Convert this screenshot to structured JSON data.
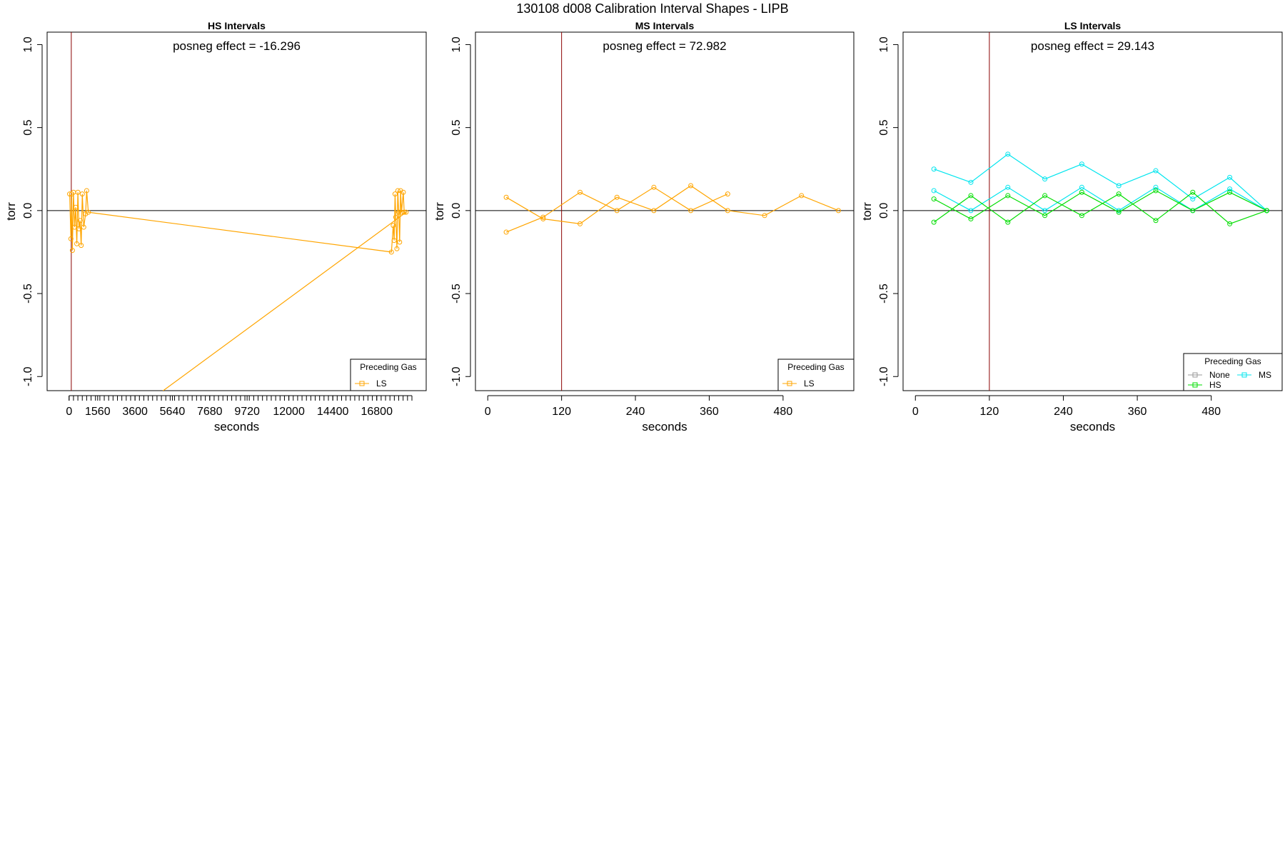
{
  "figure": {
    "title": "130108   d008   Calibration Interval Shapes - LIPB"
  },
  "colors": {
    "LS": "#ffa500",
    "MS": "#00e5ee",
    "HS": "#00dd00",
    "None": "#999999",
    "vline": "#8b0000",
    "hline": "#000000"
  },
  "chart_data": [
    {
      "type": "line",
      "title": "HS Intervals",
      "xlabel": "seconds",
      "ylabel": "torr",
      "ylim": [
        -1.0,
        1.0
      ],
      "xlim": [
        -1200,
        19500
      ],
      "x_ticks": [
        0,
        1560,
        3600,
        5640,
        7680,
        9720,
        12000,
        14400,
        16800
      ],
      "x_minor_step": 240,
      "x_minor_range": [
        0,
        18720
      ],
      "y_ticks": [
        "1.0",
        "0.5",
        "0.0",
        "-0.5",
        "-1.0"
      ],
      "y_tick_values": [
        1.0,
        0.5,
        0.0,
        -0.5,
        -1.0
      ],
      "vline_x": 120,
      "hline_y": 0,
      "annotation": "posneg effect = -16.296",
      "legend": {
        "title": "Preceding Gas",
        "position": "bottom-right",
        "entries": [
          "LS"
        ]
      },
      "series": [
        {
          "name": "LS",
          "color_key": "LS",
          "points": [
            [
              30,
              0.1
            ],
            [
              100,
              -0.17
            ],
            [
              140,
              0.1
            ],
            [
              180,
              -0.24
            ],
            [
              240,
              0.11
            ],
            [
              300,
              -0.1
            ],
            [
              360,
              0.02
            ],
            [
              420,
              -0.2
            ],
            [
              480,
              0.11
            ],
            [
              540,
              -0.11
            ],
            [
              600,
              -0.06
            ],
            [
              660,
              -0.21
            ],
            [
              720,
              0.1
            ],
            [
              800,
              -0.1
            ],
            [
              900,
              -0.02
            ],
            [
              960,
              0.12
            ],
            [
              1050,
              -0.01
            ],
            [
              17600,
              -0.25
            ],
            [
              17700,
              -0.09
            ],
            [
              17750,
              -0.18
            ],
            [
              17800,
              0.1
            ],
            [
              17840,
              -0.04
            ],
            [
              17900,
              -0.23
            ],
            [
              17950,
              0.12
            ],
            [
              18000,
              -0.01
            ],
            [
              18050,
              -0.19
            ],
            [
              18100,
              0.12
            ],
            [
              18150,
              -0.01
            ],
            [
              18250,
              0.11
            ],
            [
              18300,
              -0.01
            ],
            [
              18400,
              -0.01
            ],
            [
              4950,
              -1.1
            ]
          ]
        }
      ]
    },
    {
      "type": "line",
      "title": "MS Intervals",
      "xlabel": "seconds",
      "ylabel": "torr",
      "ylim": [
        -1.0,
        1.0
      ],
      "xlim": [
        -20,
        595
      ],
      "x_ticks": [
        0,
        120,
        240,
        360,
        480
      ],
      "y_ticks": [
        "1.0",
        "0.5",
        "0.0",
        "-0.5",
        "-1.0"
      ],
      "y_tick_values": [
        1.0,
        0.5,
        0.0,
        -0.5,
        -1.0
      ],
      "vline_x": 120,
      "hline_y": 0,
      "annotation": "posneg effect = 72.982",
      "legend": {
        "title": "Preceding Gas",
        "position": "bottom-right",
        "entries": [
          "LS"
        ]
      },
      "series": [
        {
          "name": "LS",
          "color_key": "LS",
          "points": [
            [
              30,
              0.08
            ],
            [
              90,
              -0.05
            ],
            [
              150,
              -0.08
            ],
            [
              210,
              0.08
            ],
            [
              270,
              0.0
            ],
            [
              330,
              0.15
            ],
            [
              390,
              0.0
            ],
            [
              450,
              -0.03
            ],
            [
              510,
              0.09
            ],
            [
              570,
              0.0
            ]
          ]
        },
        {
          "name": "LS",
          "color_key": "LS",
          "points": [
            [
              30,
              -0.13
            ],
            [
              90,
              -0.04
            ],
            [
              150,
              0.11
            ],
            [
              210,
              0.0
            ],
            [
              270,
              0.14
            ],
            [
              330,
              0.0
            ],
            [
              390,
              0.1
            ]
          ]
        }
      ]
    },
    {
      "type": "line",
      "title": "LS Intervals",
      "xlabel": "seconds",
      "ylabel": "torr",
      "ylim": [
        -1.0,
        1.0
      ],
      "xlim": [
        -20,
        595
      ],
      "x_ticks": [
        0,
        120,
        240,
        360,
        480
      ],
      "y_ticks": [
        "1.0",
        "0.5",
        "0.0",
        "-0.5",
        "-1.0"
      ],
      "y_tick_values": [
        1.0,
        0.5,
        0.0,
        -0.5,
        -1.0
      ],
      "vline_x": 120,
      "hline_y": 0,
      "annotation": "posneg effect = 29.143",
      "legend": {
        "title": "Preceding Gas",
        "position": "bottom-right",
        "entries": [
          "None",
          "MS",
          "HS"
        ]
      },
      "series": [
        {
          "name": "MS",
          "color_key": "MS",
          "points": [
            [
              30,
              0.25
            ],
            [
              90,
              0.17
            ],
            [
              150,
              0.34
            ],
            [
              210,
              0.19
            ],
            [
              270,
              0.28
            ],
            [
              330,
              0.15
            ],
            [
              390,
              0.24
            ],
            [
              450,
              0.07
            ],
            [
              510,
              0.2
            ],
            [
              570,
              0.0
            ]
          ]
        },
        {
          "name": "MS",
          "color_key": "MS",
          "points": [
            [
              30,
              0.12
            ],
            [
              90,
              0.0
            ],
            [
              150,
              0.14
            ],
            [
              210,
              0.0
            ],
            [
              270,
              0.14
            ],
            [
              330,
              0.0
            ],
            [
              390,
              0.14
            ],
            [
              450,
              0.0
            ],
            [
              510,
              0.13
            ],
            [
              570,
              0.0
            ]
          ]
        },
        {
          "name": "HS",
          "color_key": "HS",
          "points": [
            [
              30,
              0.07
            ],
            [
              90,
              -0.05
            ],
            [
              150,
              0.09
            ],
            [
              210,
              -0.03
            ],
            [
              270,
              0.11
            ],
            [
              330,
              -0.01
            ],
            [
              390,
              0.12
            ],
            [
              450,
              0.0
            ],
            [
              510,
              0.11
            ],
            [
              570,
              0.0
            ]
          ]
        },
        {
          "name": "HS",
          "color_key": "HS",
          "points": [
            [
              30,
              -0.07
            ],
            [
              90,
              0.09
            ],
            [
              150,
              -0.07
            ],
            [
              210,
              0.09
            ],
            [
              270,
              -0.03
            ],
            [
              330,
              0.1
            ],
            [
              390,
              -0.06
            ],
            [
              450,
              0.11
            ],
            [
              510,
              -0.08
            ],
            [
              570,
              0.0
            ]
          ]
        }
      ]
    }
  ]
}
